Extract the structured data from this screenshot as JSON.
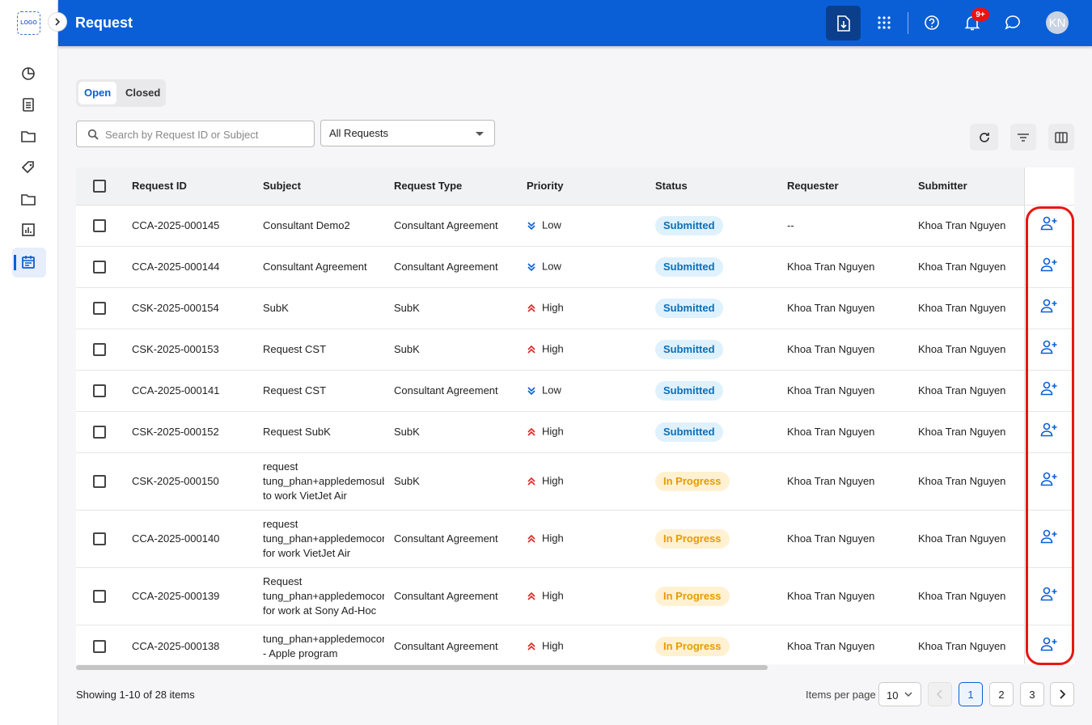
{
  "sidebar": {
    "logo": "LOGO"
  },
  "header": {
    "title": "Request",
    "notification_badge": "9+",
    "avatar": "KN"
  },
  "tabs": [
    "Open",
    "Closed"
  ],
  "search_placeholder": "Search by Request ID or Subject",
  "filter": "All Requests",
  "table": {
    "columns": [
      "Request ID",
      "Subject",
      "Request Type",
      "Priority",
      "Status",
      "Requester",
      "Submitter"
    ],
    "rows": [
      {
        "id": "CCA-2025-000145",
        "subject": "Consultant Demo2",
        "type": "Consultant Agreement",
        "priority": "Low",
        "status": "Submitted",
        "requester": "--",
        "submitter": "Khoa Tran Nguyen"
      },
      {
        "id": "CCA-2025-000144",
        "subject": "Consultant Agreement",
        "type": "Consultant Agreement",
        "priority": "Low",
        "status": "Submitted",
        "requester": "Khoa Tran Nguyen",
        "submitter": "Khoa Tran Nguyen"
      },
      {
        "id": "CSK-2025-000154",
        "subject": "SubK",
        "type": "SubK",
        "priority": "High",
        "status": "Submitted",
        "requester": "Khoa Tran Nguyen",
        "submitter": "Khoa Tran Nguyen"
      },
      {
        "id": "CSK-2025-000153",
        "subject": "Request CST",
        "type": "SubK",
        "priority": "High",
        "status": "Submitted",
        "requester": "Khoa Tran Nguyen",
        "submitter": "Khoa Tran Nguyen"
      },
      {
        "id": "CCA-2025-000141",
        "subject": "Request CST",
        "type": "Consultant Agreement",
        "priority": "Low",
        "status": "Submitted",
        "requester": "Khoa Tran Nguyen",
        "submitter": "Khoa Tran Nguyen"
      },
      {
        "id": "CSK-2025-000152",
        "subject": "Request SubK",
        "type": "SubK",
        "priority": "High",
        "status": "Submitted",
        "requester": "Khoa Tran Nguyen",
        "submitter": "Khoa Tran Nguyen"
      },
      {
        "id": "CSK-2025-000150",
        "subject": "request tung_phan+appledemosub to work VietJet Air",
        "type": "SubK",
        "priority": "High",
        "status": "In Progress",
        "requester": "Khoa Tran Nguyen",
        "submitter": "Khoa Tran Nguyen"
      },
      {
        "id": "CCA-2025-000140",
        "subject": "request tung_phan+appledemocon for work VietJet Air",
        "type": "Consultant Agreement",
        "priority": "High",
        "status": "In Progress",
        "requester": "Khoa Tran Nguyen",
        "submitter": "Khoa Tran Nguyen"
      },
      {
        "id": "CCA-2025-000139",
        "subject": "Request tung_phan+appledemocon for work at Sony Ad-Hoc Ev",
        "type": "Consultant Agreement",
        "priority": "High",
        "status": "In Progress",
        "requester": "Khoa Tran Nguyen",
        "submitter": "Khoa Tran Nguyen"
      },
      {
        "id": "CCA-2025-000138",
        "subject": "tung_phan+appledemocon - Apple program",
        "type": "Consultant Agreement",
        "priority": "High",
        "status": "In Progress",
        "requester": "Khoa Tran Nguyen",
        "submitter": "Khoa Tran Nguyen"
      }
    ]
  },
  "footer": {
    "summary": "Showing 1-10 of 28 items",
    "items_per_page_label": "Items per page",
    "items_per_page": 10,
    "pages": [
      1,
      2,
      3
    ]
  }
}
